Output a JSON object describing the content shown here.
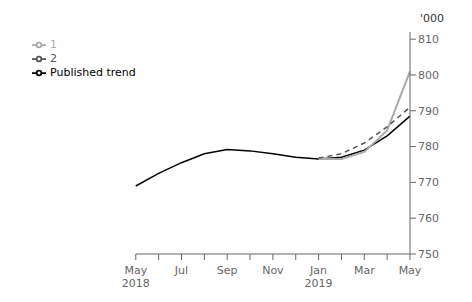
{
  "chart_data": {
    "type": "line",
    "ylabel": "'000",
    "categories": [
      "May\n2018",
      null,
      "Jul",
      null,
      "Sep",
      null,
      "Nov",
      null,
      "Jan\n2019",
      null,
      "Mar",
      null,
      "May"
    ],
    "series": [
      {
        "name": "Published trend",
        "color": "#000000",
        "line_style": "solid",
        "values": [
          769.0,
          772.5,
          775.5,
          778.0,
          779.2,
          778.8,
          778.0,
          777.0,
          776.5,
          777.0,
          779.0,
          783.0,
          788.5
        ]
      },
      {
        "name": "1",
        "color": "#aaaaaa",
        "line_style": "solid",
        "values": [
          null,
          null,
          null,
          null,
          null,
          null,
          null,
          null,
          776.5,
          776.5,
          778.5,
          784.5,
          801.0
        ]
      },
      {
        "name": "2",
        "color": "#555555",
        "line_style": "dashed",
        "values": [
          null,
          null,
          null,
          null,
          null,
          null,
          null,
          null,
          776.8,
          778.0,
          781.0,
          785.5,
          791.0
        ]
      }
    ],
    "ylim": [
      750,
      812
    ],
    "yticks": [
      750,
      760,
      770,
      780,
      790,
      800,
      810
    ],
    "grid": false,
    "legend": "top left"
  }
}
